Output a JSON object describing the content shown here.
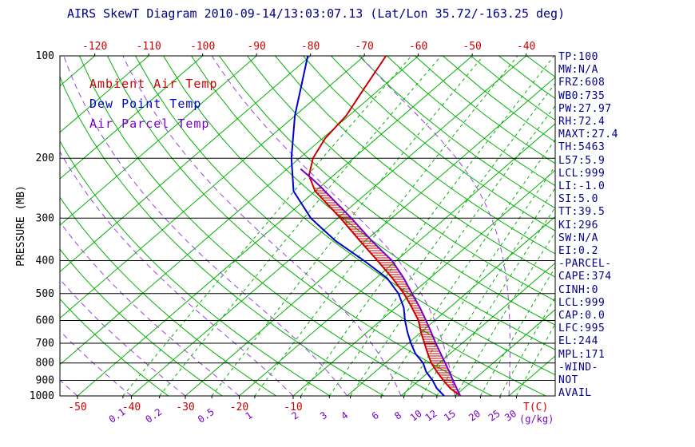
{
  "window": {
    "title": "AIRS SkewT Diagram"
  },
  "axes": {
    "ylabel": "PRESSURE (MB)",
    "xlabel": "T(C)",
    "mixing_label": "(g/kg)"
  },
  "stats": {
    "lines": [
      "TP:100",
      "MW:N/A",
      "FRZ:608",
      "WB0:735",
      "PW:27.97",
      "RH:72.4",
      "MAXT:27.4",
      "TH:5463",
      "L57:5.9",
      "LCL:999",
      "LI:-1.0",
      "SI:5.0",
      "TT:39.5",
      "KI:296",
      "SW:N/A",
      "EI:0.2",
      "-PARCEL-",
      "CAPE:374",
      "CINH:0",
      "LCL:999",
      "CAP:0.0",
      "LFC:995",
      "EL:244",
      "MPL:171",
      "-WIND-",
      "NOT",
      "AVAIL"
    ]
  },
  "chart_data": {
    "type": "line",
    "subtype": "skew-t-log-p",
    "title": "AIRS SkewT Diagram 2010-09-14/13:03:07.13 (Lat/Lon 35.72/-163.25 deg)",
    "ylabel": "PRESSURE (MB)",
    "xlabel": "T(C)",
    "mixing_label": "(g/kg)",
    "pressure_range_mb": [
      100,
      1000
    ],
    "pressure_ticks": [
      100,
      200,
      300,
      400,
      500,
      600,
      700,
      800,
      900,
      1000
    ],
    "top_temp_ticks": [
      -120,
      -110,
      -100,
      -90,
      -80,
      -70,
      -60,
      -50,
      -40
    ],
    "bottom_temp_ticks": [
      -50,
      -40,
      -30,
      -20,
      -10
    ],
    "mixing_ratio_g_kg": [
      0.1,
      0.2,
      0.5,
      1,
      2,
      3,
      4,
      6,
      8,
      10,
      12,
      15,
      20,
      25,
      30
    ],
    "isotherms": {
      "min": -160,
      "max": 40,
      "step": 10
    },
    "dry_adiabats_K": {
      "min": 240,
      "max": 450,
      "step": 10
    },
    "moist_adiabats_C": [
      -60,
      -50,
      -40,
      -30,
      -20,
      -10,
      0,
      10,
      20,
      30
    ],
    "colors": {
      "isotherm": "#00b200",
      "dry_adiabat": "#00b200",
      "mixing_ratio": "#00b200",
      "moist_adiabat": "#9944dd",
      "isobar": "#000000",
      "axis_text": "#000000",
      "temp_label": "#cc0000",
      "mixing_label_text": "#7700cc",
      "stats_text": "#000088"
    },
    "series": [
      {
        "name": "Ambient Air Temp",
        "data_name": "ambient-temp-curve",
        "color": "#cc0000",
        "points": [
          [
            1000,
            21
          ],
          [
            950,
            17.5
          ],
          [
            900,
            14.5
          ],
          [
            850,
            11.5
          ],
          [
            800,
            8.5
          ],
          [
            750,
            5.8
          ],
          [
            700,
            3
          ],
          [
            650,
            0
          ],
          [
            600,
            -3
          ],
          [
            550,
            -7
          ],
          [
            500,
            -11.5
          ],
          [
            450,
            -17
          ],
          [
            400,
            -23.5
          ],
          [
            350,
            -31
          ],
          [
            300,
            -39.5
          ],
          [
            250,
            -50
          ],
          [
            225,
            -54.5
          ],
          [
            200,
            -57.5
          ],
          [
            175,
            -59.5
          ],
          [
            150,
            -60.5
          ],
          [
            125,
            -63
          ],
          [
            100,
            -66
          ]
        ]
      },
      {
        "name": "Dew Point Temp",
        "data_name": "dew-point-curve",
        "color": "#0000cc",
        "points": [
          [
            1000,
            18
          ],
          [
            950,
            15
          ],
          [
            900,
            12.5
          ],
          [
            850,
            9.5
          ],
          [
            800,
            7
          ],
          [
            750,
            3.5
          ],
          [
            700,
            0.5
          ],
          [
            650,
            -2.5
          ],
          [
            600,
            -5.5
          ],
          [
            550,
            -8.5
          ],
          [
            500,
            -12.5
          ],
          [
            450,
            -18
          ],
          [
            400,
            -26
          ],
          [
            350,
            -35.5
          ],
          [
            300,
            -45
          ],
          [
            250,
            -54
          ],
          [
            200,
            -61.5
          ],
          [
            150,
            -70
          ],
          [
            100,
            -80.5
          ]
        ]
      },
      {
        "name": "Air Parcel Temp",
        "data_name": "parcel-temp-curve",
        "color": "#7700cc",
        "points": [
          [
            1000,
            21
          ],
          [
            950,
            18.7
          ],
          [
            900,
            16.3
          ],
          [
            850,
            13.8
          ],
          [
            800,
            11.1
          ],
          [
            750,
            8.2
          ],
          [
            700,
            5.1
          ],
          [
            650,
            1.9
          ],
          [
            600,
            -1.6
          ],
          [
            550,
            -5.5
          ],
          [
            500,
            -10
          ],
          [
            450,
            -14.9
          ],
          [
            400,
            -20.8
          ],
          [
            350,
            -28.8
          ],
          [
            300,
            -37.5
          ],
          [
            250,
            -48.2
          ],
          [
            244,
            -49.6
          ],
          [
            230,
            -53.2
          ],
          [
            215,
            -57.5
          ]
        ]
      }
    ],
    "cape_hatch": {
      "between": [
        "Ambient Air Temp",
        "Air Parcel Temp"
      ],
      "from_mb": 995,
      "to_mb": 244,
      "color": "#cc0000"
    }
  }
}
